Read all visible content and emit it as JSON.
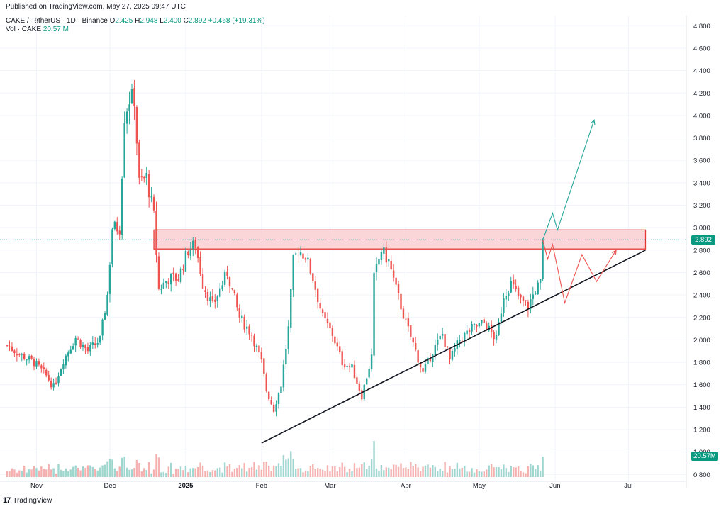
{
  "header": {
    "published": "Published on TradingView.com, May 27, 2025 09:47 UTC",
    "symbol": "CAKE / TetherUS · 1D · Binance",
    "o_label": "O",
    "o_value": "2.425",
    "h_label": "H",
    "h_value": "2.948",
    "l_label": "L",
    "l_value": "2.400",
    "c_label": "C",
    "c_value": "2.892",
    "change": "+0.468 (+19.31%)",
    "vol_label": "Vol · CAKE",
    "vol_value": "20.57 M"
  },
  "footer": {
    "brand": "TradingView"
  },
  "tags": {
    "price": "2.892",
    "volume": "20.57M"
  },
  "colors": {
    "up": "#26a69a",
    "down": "#ef5350",
    "up_vol": "#9fd6d0",
    "down_vol": "#f5b1b0",
    "zone_fill": "#f8c8cc",
    "zone_stroke": "#e53935"
  },
  "chart_data": {
    "type": "candlestick",
    "y_axis": {
      "ticks": [
        "4.800",
        "4.600",
        "4.400",
        "4.200",
        "4.000",
        "3.800",
        "3.600",
        "3.400",
        "3.200",
        "3.000",
        "2.800",
        "2.600",
        "2.400",
        "2.200",
        "2.000",
        "1.800",
        "1.600",
        "1.400",
        "1.200",
        "1.000",
        "0.800"
      ]
    },
    "x_axis": {
      "ticks": [
        {
          "label": "Nov",
          "date": "2024-11-01"
        },
        {
          "label": "Dec",
          "date": "2024-12-01"
        },
        {
          "label": "2025",
          "date": "2025-01-01"
        },
        {
          "label": "Feb",
          "date": "2025-02-01"
        },
        {
          "label": "Mar",
          "date": "2025-03-01"
        },
        {
          "label": "Apr",
          "date": "2025-04-01"
        },
        {
          "label": "May",
          "date": "2025-05-01"
        },
        {
          "label": "Jun",
          "date": "2025-06-01"
        },
        {
          "label": "Jul",
          "date": "2025-07-01"
        }
      ]
    },
    "close_path": [
      [
        "2024-10-20",
        1.95
      ],
      [
        "2024-10-26",
        1.86
      ],
      [
        "2024-10-31",
        1.8
      ],
      [
        "2024-11-05",
        1.68
      ],
      [
        "2024-11-08",
        1.58
      ],
      [
        "2024-11-12",
        1.82
      ],
      [
        "2024-11-17",
        2.02
      ],
      [
        "2024-11-22",
        1.9
      ],
      [
        "2024-11-27",
        2.0
      ],
      [
        "2024-11-30",
        2.4
      ],
      [
        "2024-12-02",
        3.0
      ],
      [
        "2024-12-05",
        3.0
      ],
      [
        "2024-12-07",
        4.0
      ],
      [
        "2024-12-09",
        4.15
      ],
      [
        "2024-12-11",
        4.15
      ],
      [
        "2024-12-13",
        3.4
      ],
      [
        "2024-12-16",
        3.45
      ],
      [
        "2024-12-19",
        3.1
      ],
      [
        "2024-12-21",
        2.45
      ],
      [
        "2024-12-25",
        2.55
      ],
      [
        "2024-12-29",
        2.55
      ],
      [
        "2025-01-02",
        2.8
      ],
      [
        "2025-01-05",
        2.85
      ],
      [
        "2025-01-08",
        2.5
      ],
      [
        "2025-01-12",
        2.3
      ],
      [
        "2025-01-18",
        2.6
      ],
      [
        "2025-01-23",
        2.2
      ],
      [
        "2025-01-28",
        2.05
      ],
      [
        "2025-02-01",
        1.8
      ],
      [
        "2025-02-03",
        1.55
      ],
      [
        "2025-02-06",
        1.38
      ],
      [
        "2025-02-09",
        1.6
      ],
      [
        "2025-02-12",
        2.1
      ],
      [
        "2025-02-14",
        2.7
      ],
      [
        "2025-02-16",
        2.8
      ],
      [
        "2025-02-19",
        2.75
      ],
      [
        "2025-02-22",
        2.55
      ],
      [
        "2025-02-26",
        2.2
      ],
      [
        "2025-03-02",
        2.05
      ],
      [
        "2025-03-06",
        1.8
      ],
      [
        "2025-03-10",
        1.75
      ],
      [
        "2025-03-14",
        1.5
      ],
      [
        "2025-03-18",
        1.85
      ],
      [
        "2025-03-19",
        2.55
      ],
      [
        "2025-03-22",
        2.8
      ],
      [
        "2025-03-25",
        2.7
      ],
      [
        "2025-03-28",
        2.45
      ],
      [
        "2025-04-01",
        2.15
      ],
      [
        "2025-04-05",
        1.9
      ],
      [
        "2025-04-08",
        1.7
      ],
      [
        "2025-04-12",
        1.9
      ],
      [
        "2025-04-16",
        2.05
      ],
      [
        "2025-04-19",
        1.82
      ],
      [
        "2025-04-23",
        2.0
      ],
      [
        "2025-04-28",
        2.1
      ],
      [
        "2025-05-03",
        2.15
      ],
      [
        "2025-05-08",
        2.0
      ],
      [
        "2025-05-11",
        2.4
      ],
      [
        "2025-05-14",
        2.5
      ],
      [
        "2025-05-18",
        2.35
      ],
      [
        "2025-05-21",
        2.3
      ],
      [
        "2025-05-24",
        2.45
      ],
      [
        "2025-05-26",
        2.5
      ],
      [
        "2025-05-27",
        2.892
      ]
    ],
    "annotations": {
      "resistance_zone": {
        "from": "2024-12-19",
        "to": "2025-07-08",
        "low": 2.81,
        "high": 2.98
      },
      "trendline": {
        "start": [
          "2025-02-01",
          1.08
        ],
        "end": [
          "2025-07-08",
          2.8
        ]
      },
      "bullish_path": [
        [
          "2025-05-27",
          2.89
        ],
        [
          "2025-05-31",
          3.13
        ],
        [
          "2025-06-02",
          2.98
        ],
        [
          "2025-06-17",
          3.96
        ]
      ],
      "bearish_path": [
        [
          "2025-05-27",
          2.89
        ],
        [
          "2025-05-29",
          2.72
        ],
        [
          "2025-05-31",
          2.85
        ],
        [
          "2025-06-05",
          2.33
        ],
        [
          "2025-06-12",
          2.76
        ],
        [
          "2025-06-18",
          2.52
        ],
        [
          "2025-06-26",
          2.8
        ]
      ],
      "last_price_line": 2.892
    }
  }
}
